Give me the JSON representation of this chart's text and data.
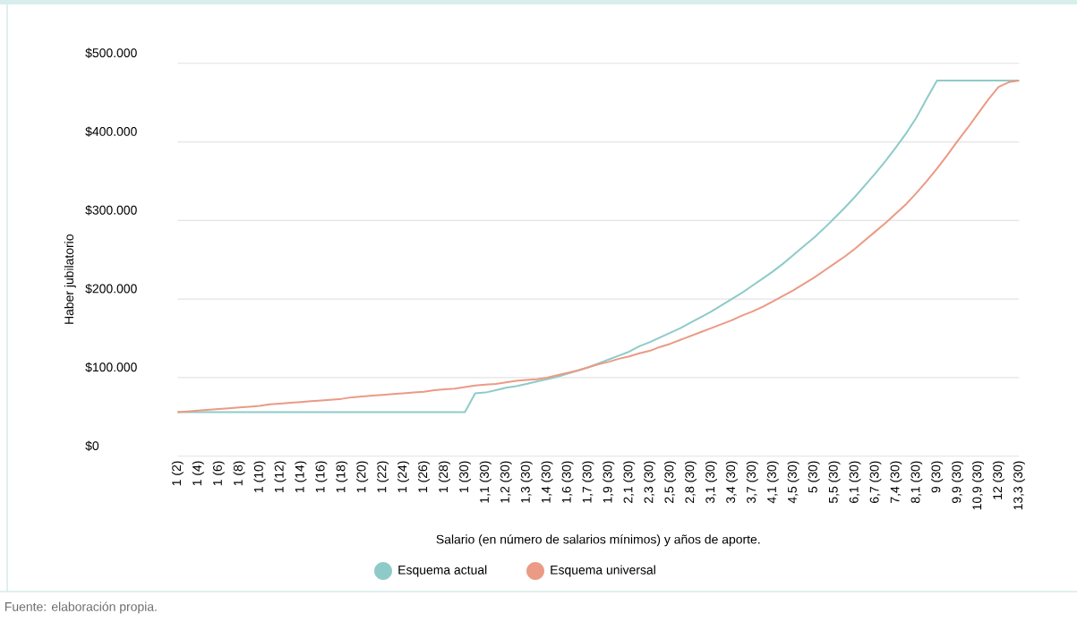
{
  "chart_data": {
    "type": "line",
    "xlabel": "Salario (en número de salarios mínimos) y años de aporte.",
    "ylabel": "Haber jubilatorio",
    "annotations": [
      "Fuente: elaboración propia."
    ],
    "categories": [
      "1 (2)",
      null,
      "1 (4)",
      null,
      "1 (6)",
      null,
      "1 (8)",
      null,
      "1 (10)",
      null,
      "1 (12)",
      null,
      "1 (14)",
      null,
      "1 (16)",
      null,
      "1 (18)",
      null,
      "1 (20)",
      null,
      "1 (22)",
      null,
      "1 (24)",
      null,
      "1 (26)",
      null,
      "1 (28)",
      null,
      "1 (30)",
      null,
      "1,1 (30)",
      null,
      "1,2 (30)",
      null,
      "1,3 (30)",
      null,
      "1,4 (30)",
      null,
      "1,6 (30)",
      null,
      "1,7 (30)",
      null,
      "1,9 (30)",
      null,
      "2,1 (30)",
      null,
      "2,3 (30)",
      null,
      "2,5 (30)",
      null,
      "2,8 (30)",
      null,
      "3,1 (30)",
      null,
      "3,4 (30)",
      null,
      "3,7 (30)",
      null,
      "4,1 (30)",
      null,
      "4,5 (30)",
      null,
      "5 (30)",
      null,
      "5,5 (30)",
      null,
      "6,1 (30)",
      null,
      "6,7 (30)",
      null,
      "7,4 (30)",
      null,
      "8,1 (30)",
      null,
      "9 (30)",
      null,
      "9,9 (30)",
      null,
      "10,9 (30)",
      null,
      "12 (30)",
      null,
      "13,3 (30)"
    ],
    "series": [
      {
        "name": "Esquema actual",
        "color": "#8ecbc8",
        "values": [
          56000,
          56000,
          56000,
          56000,
          56000,
          56000,
          56000,
          56000,
          56000,
          56000,
          56000,
          56000,
          56000,
          56000,
          56000,
          56000,
          56000,
          56000,
          56000,
          56000,
          56000,
          56000,
          56000,
          56000,
          56000,
          56000,
          56000,
          56000,
          56000,
          80000,
          81000,
          84000,
          87000,
          89000,
          92000,
          95000,
          98000,
          101000,
          105000,
          109000,
          113000,
          118000,
          123000,
          128000,
          133000,
          140000,
          145000,
          151000,
          157000,
          163000,
          170000,
          177000,
          184000,
          192000,
          200000,
          208000,
          217000,
          226000,
          235000,
          245000,
          256000,
          267000,
          278000,
          290000,
          303000,
          316000,
          330000,
          345000,
          360000,
          376000,
          393000,
          411000,
          431000,
          455000,
          478000,
          478000,
          478000,
          478000,
          478000,
          478000,
          478000,
          478000,
          478000
        ]
      },
      {
        "name": "Esquema universal",
        "color": "#eb9a85",
        "values": [
          56000,
          57000,
          58000,
          59000,
          60000,
          61000,
          62000,
          63000,
          64000,
          66000,
          67000,
          68000,
          69000,
          70000,
          71000,
          72000,
          73000,
          75000,
          76000,
          77000,
          78000,
          79000,
          80000,
          81000,
          82000,
          84000,
          85000,
          86000,
          88000,
          90000,
          91000,
          92000,
          94000,
          96000,
          97000,
          98000,
          100000,
          103000,
          106000,
          109000,
          113000,
          117000,
          120000,
          124000,
          127000,
          131000,
          134000,
          139000,
          143000,
          148000,
          153000,
          158000,
          163000,
          168000,
          173000,
          179000,
          184000,
          190000,
          197000,
          204000,
          211000,
          219000,
          227000,
          236000,
          245000,
          254000,
          264000,
          275000,
          286000,
          297000,
          309000,
          321000,
          335000,
          350000,
          366000,
          383000,
          401000,
          418000,
          436000,
          454000,
          470000,
          476000,
          478000
        ]
      }
    ],
    "ylim": [
      0,
      500000
    ],
    "yticks": [
      {
        "value": 0,
        "label": "$0"
      },
      {
        "value": 100000,
        "label": "$100.000"
      },
      {
        "value": 200000,
        "label": "$200.000"
      },
      {
        "value": 300000,
        "label": "$300.000"
      },
      {
        "value": 400000,
        "label": "$400.000"
      },
      {
        "value": 500000,
        "label": "$500.000"
      }
    ],
    "grid": "y",
    "legend": "bottom",
    "marker": "none",
    "line_style": "solid"
  }
}
